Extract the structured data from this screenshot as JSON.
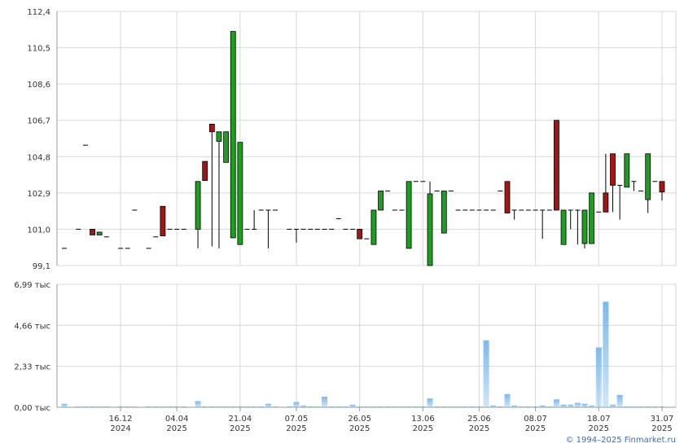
{
  "chart_data": [
    {
      "type": "candlestick",
      "ylim": [
        99.1,
        112.4
      ],
      "yticks": [
        {
          "value": 99.1,
          "label": "99,1"
        },
        {
          "value": 101.0,
          "label": "101,0"
        },
        {
          "value": 102.9,
          "label": "102,9"
        },
        {
          "value": 104.8,
          "label": "104,8"
        },
        {
          "value": 106.7,
          "label": "106,7"
        },
        {
          "value": 108.6,
          "label": "108,6"
        },
        {
          "value": 110.5,
          "label": "110,5"
        },
        {
          "value": 112.4,
          "label": "112,4"
        }
      ],
      "up_color": "#1e9e1e",
      "down_color": "#a51515",
      "grid": true,
      "categories": [
        null,
        null,
        null,
        null,
        null,
        null,
        null,
        null,
        [
          "16.12",
          "2024"
        ],
        null,
        null,
        null,
        null,
        null,
        null,
        null,
        [
          "04.04",
          "2025"
        ],
        null,
        null,
        null,
        null,
        null,
        null,
        null,
        null,
        [
          "21.04",
          "2025"
        ],
        null,
        null,
        null,
        null,
        null,
        null,
        null,
        [
          "07.05",
          "2025"
        ],
        null,
        null,
        null,
        null,
        null,
        null,
        null,
        null,
        [
          "26.05",
          "2025"
        ],
        null,
        null,
        null,
        null,
        null,
        null,
        null,
        null,
        [
          "13.06",
          "2025"
        ],
        null,
        null,
        null,
        null,
        null,
        null,
        null,
        [
          "25.06",
          "2025"
        ],
        null,
        null,
        null,
        null,
        null,
        null,
        null,
        [
          "08.07",
          "2025"
        ],
        null,
        null,
        null,
        null,
        null,
        null,
        null,
        null,
        [
          "18.07",
          "2025"
        ],
        null,
        null,
        null,
        null,
        null,
        null,
        null,
        null,
        [
          "31.07",
          "2025"
        ]
      ],
      "open": [
        100.0,
        null,
        101.0,
        105.4,
        101.0,
        100.7,
        100.6,
        null,
        100.0,
        100.0,
        102.0,
        null,
        100.0,
        100.6,
        102.2,
        101.0,
        101.0,
        101.0,
        null,
        101.0,
        104.55,
        106.5,
        105.6,
        104.5,
        100.55,
        100.2,
        101.0,
        101.0,
        102.0,
        102.0,
        102.0,
        null,
        101.0,
        101.0,
        101.0,
        101.0,
        101.0,
        101.0,
        101.0,
        101.55,
        101.0,
        101.0,
        101.0,
        100.5,
        100.2,
        102.0,
        103.0,
        102.0,
        102.0,
        100.0,
        103.5,
        103.5,
        99.1,
        103.0,
        100.8,
        103.0,
        102.0,
        102.0,
        102.0,
        102.0,
        102.0,
        102.0,
        103.0,
        103.5,
        102.0,
        102.0,
        102.0,
        102.0,
        102.0,
        102.0,
        106.7,
        100.2,
        102.0,
        102.0,
        100.25,
        100.25,
        101.9,
        102.9,
        104.95,
        103.3,
        103.2,
        103.5,
        103.0,
        102.55,
        103.5,
        103.5
      ],
      "high": [
        100.0,
        null,
        101.0,
        105.4,
        101.0,
        100.85,
        100.6,
        null,
        100.0,
        100.0,
        102.0,
        null,
        100.0,
        100.6,
        102.2,
        101.0,
        101.0,
        101.0,
        null,
        103.5,
        104.55,
        106.5,
        106.1,
        106.1,
        111.35,
        105.55,
        101.0,
        102.0,
        102.0,
        102.0,
        102.0,
        null,
        101.0,
        101.0,
        101.0,
        101.0,
        101.0,
        101.0,
        101.0,
        101.55,
        101.0,
        101.0,
        101.0,
        100.5,
        102.0,
        103.0,
        103.0,
        102.0,
        102.0,
        103.5,
        103.5,
        103.5,
        103.5,
        103.0,
        103.0,
        103.0,
        102.0,
        102.0,
        102.0,
        102.0,
        102.0,
        102.0,
        103.0,
        103.5,
        102.0,
        102.0,
        102.0,
        102.0,
        102.0,
        102.0,
        106.7,
        102.0,
        102.0,
        102.0,
        102.0,
        102.9,
        101.9,
        104.95,
        104.95,
        103.3,
        104.95,
        103.5,
        103.0,
        104.95,
        103.5,
        103.5
      ],
      "low": [
        100.0,
        null,
        101.0,
        105.4,
        100.7,
        100.7,
        100.6,
        null,
        100.0,
        100.0,
        102.0,
        null,
        100.0,
        100.6,
        100.65,
        101.0,
        101.0,
        101.0,
        null,
        100.0,
        103.55,
        100.1,
        100.0,
        104.5,
        100.55,
        100.2,
        101.0,
        101.0,
        102.0,
        100.0,
        102.0,
        null,
        101.0,
        100.3,
        101.0,
        101.0,
        101.0,
        101.0,
        101.0,
        101.55,
        101.0,
        101.0,
        100.5,
        100.5,
        100.2,
        102.0,
        103.0,
        102.0,
        102.0,
        100.0,
        103.5,
        103.5,
        99.1,
        103.0,
        100.8,
        103.0,
        102.0,
        102.0,
        102.0,
        102.0,
        102.0,
        102.0,
        103.0,
        101.85,
        101.5,
        102.0,
        102.0,
        102.0,
        100.5,
        102.0,
        102.0,
        100.2,
        101.0,
        100.2,
        100.0,
        100.25,
        101.9,
        101.9,
        101.9,
        101.5,
        103.2,
        103.0,
        103.0,
        101.85,
        103.5,
        102.5
      ],
      "close": [
        100.0,
        null,
        101.0,
        105.4,
        100.7,
        100.85,
        100.6,
        null,
        100.0,
        100.0,
        102.0,
        null,
        100.0,
        100.6,
        100.65,
        101.0,
        101.0,
        101.0,
        null,
        103.5,
        103.55,
        106.1,
        106.1,
        106.1,
        111.35,
        105.55,
        101.0,
        101.0,
        102.0,
        102.0,
        102.0,
        null,
        101.0,
        101.0,
        101.0,
        101.0,
        101.0,
        101.0,
        101.0,
        101.55,
        101.0,
        101.0,
        100.5,
        100.5,
        102.0,
        103.0,
        103.0,
        102.0,
        102.0,
        103.5,
        103.5,
        103.5,
        102.85,
        103.0,
        103.0,
        103.0,
        102.0,
        102.0,
        102.0,
        102.0,
        102.0,
        102.0,
        103.0,
        101.85,
        102.0,
        102.0,
        102.0,
        102.0,
        102.0,
        102.0,
        102.0,
        102.0,
        102.0,
        102.0,
        102.0,
        102.9,
        101.9,
        101.9,
        103.3,
        103.3,
        104.95,
        103.5,
        103.0,
        104.95,
        103.5,
        102.95
      ]
    },
    {
      "type": "bar",
      "ylim": [
        0,
        6.99
      ],
      "yticks": [
        {
          "value": 0,
          "label": "0,00 тыс"
        },
        {
          "value": 2.33,
          "label": "2,33 тыс"
        },
        {
          "value": 4.66,
          "label": "4,66 тыс"
        },
        {
          "value": 6.99,
          "label": "6,99 тыс"
        }
      ],
      "color": "#7cb9ec",
      "grid": true,
      "values": [
        0.2,
        null,
        0.05,
        0.05,
        0.05,
        0.05,
        0.05,
        null,
        0.05,
        0.05,
        0.05,
        null,
        0.05,
        0.05,
        0.05,
        0.05,
        0.05,
        0.05,
        null,
        0.35,
        0.05,
        0.05,
        0.05,
        0.05,
        0.05,
        0.05,
        0.05,
        0.05,
        0.05,
        0.2,
        0.05,
        null,
        0.05,
        0.3,
        0.1,
        0.05,
        0.05,
        0.6,
        0.05,
        0.05,
        0.05,
        0.15,
        0.05,
        0.05,
        0.05,
        0.05,
        0.05,
        0.05,
        0.05,
        0.05,
        0.05,
        0.05,
        0.5,
        0.05,
        0.05,
        0.05,
        0.05,
        0.05,
        0.05,
        0.05,
        3.8,
        0.1,
        0.05,
        0.75,
        0.1,
        0.05,
        0.05,
        0.05,
        0.1,
        0.05,
        0.45,
        0.15,
        0.15,
        0.25,
        0.2,
        0.1,
        3.4,
        6.0,
        0.15,
        0.7,
        0.05,
        0.05,
        0.05,
        0.05,
        0.05,
        0.05
      ]
    }
  ],
  "footer": "© 1994–2025 Finmarket.ru"
}
